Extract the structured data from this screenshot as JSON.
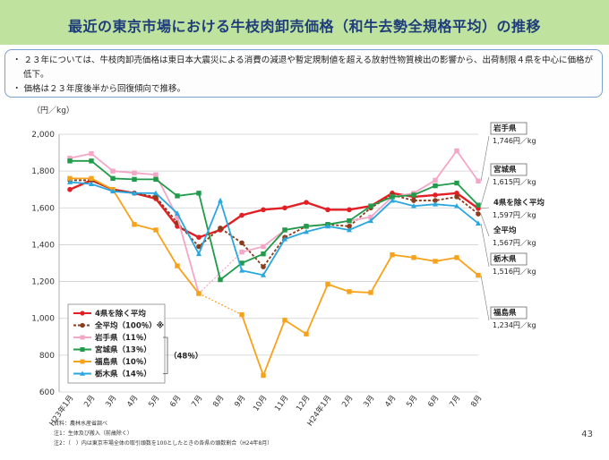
{
  "header": {
    "title": "最近の東京市場における牛枝肉卸売価格（和牛去勢全規格平均）の推移"
  },
  "summary": {
    "bullets": [
      "・ ２３年については、牛枝肉卸売価格は東日本大震災による消費の減退や暫定規制値を超える放射性物質検出の影響から、出荷制限４県を中心に価格が低下。",
      "・ 価格は２３年度後半から回復傾向で推移。"
    ]
  },
  "footer": {
    "source": "資料：農林水産省調べ",
    "note1": "注1：生体及び搬入（前歳除く）",
    "note2": "注2：（　）内は東京市場全体の取引頭数を100としたときの各県の頭数割合（H24年8月）",
    "page_number": "43"
  },
  "chart_data": {
    "type": "line",
    "unit_label": "（円／kg）",
    "ylim": [
      600,
      2000
    ],
    "yticks": [
      "2,000",
      "1,800",
      "1,600",
      "1,400",
      "1,200",
      "1,000",
      "800",
      "600"
    ],
    "categories": [
      "H23年1月",
      "2月",
      "3月",
      "4月",
      "5月",
      "6月",
      "7月",
      "8月",
      "9月",
      "10月",
      "11月",
      "12月",
      "H24年1月",
      "2月",
      "3月",
      "4月",
      "5月",
      "6月",
      "7月",
      "8月"
    ],
    "group_label": "（48％）",
    "series": [
      {
        "name": "4県を除く平均",
        "color": "#e31e24",
        "dash": false,
        "marker": "circle",
        "values": [
          1700,
          1750,
          1700,
          1680,
          1650,
          1500,
          1440,
          1480,
          1560,
          1590,
          1600,
          1630,
          1590,
          1590,
          1610,
          1680,
          1660,
          1670,
          1680,
          1597
        ]
      },
      {
        "name": "全平均（100％）※",
        "color": "#8a3c1c",
        "dash": true,
        "marker": "circle",
        "values": [
          1750,
          1750,
          1700,
          1680,
          1660,
          1520,
          1390,
          1490,
          1410,
          1280,
          1440,
          1500,
          1510,
          1500,
          1600,
          1670,
          1640,
          1640,
          1660,
          1567
        ]
      },
      {
        "name": "岩手県（11％）",
        "color": "#f4a6c6",
        "dash": false,
        "marker": "square",
        "values": [
          1870,
          1895,
          1800,
          1790,
          1780,
          1550,
          1135,
          null,
          1360,
          1390,
          1480,
          1500,
          1510,
          1530,
          1550,
          1660,
          1680,
          1750,
          1910,
          1746
        ]
      },
      {
        "name": "宮城県（13％）",
        "color": "#1f9b4a",
        "dash": false,
        "marker": "square",
        "values": [
          1855,
          1855,
          1760,
          1755,
          1755,
          1665,
          1680,
          1210,
          1300,
          1350,
          1480,
          1500,
          1510,
          1530,
          1610,
          1660,
          1670,
          1720,
          1735,
          1615
        ]
      },
      {
        "name": "福島県（10％）",
        "color": "#f7a21b",
        "dash": false,
        "marker": "square",
        "values": [
          1760,
          1760,
          1700,
          1510,
          1480,
          1285,
          1135,
          null,
          1020,
          690,
          990,
          915,
          1185,
          1145,
          1140,
          1345,
          1330,
          1310,
          1330,
          1234
        ]
      },
      {
        "name": "栃木県（14％）",
        "color": "#2aa7de",
        "dash": false,
        "marker": "triangle",
        "values": [
          1740,
          1730,
          1690,
          1680,
          1680,
          1570,
          1350,
          1640,
          1260,
          1235,
          1430,
          1470,
          1500,
          1480,
          1530,
          1640,
          1610,
          1620,
          1610,
          1516
        ]
      }
    ],
    "series_gaps": {
      "岩手県（11％）": [
        6,
        8
      ],
      "福島県（10％）": [
        6,
        8
      ]
    },
    "callouts": [
      {
        "label": "岩手県",
        "value": "1,746円／kg",
        "color": "#f4a6c6"
      },
      {
        "label": "宮城県",
        "value": "1,615円／kg",
        "color": "#1f9b4a"
      },
      {
        "label": "4県を除く平均",
        "value": "1,597円／kg",
        "color": "#e31e24"
      },
      {
        "label": "全平均",
        "value": "1,567円／kg",
        "color": "#8a3c1c"
      },
      {
        "label": "栃木県",
        "value": "1,516円／kg",
        "color": "#2aa7de"
      },
      {
        "label": "福島県",
        "value": "1,234円／kg",
        "color": "#f7a21b"
      }
    ]
  }
}
